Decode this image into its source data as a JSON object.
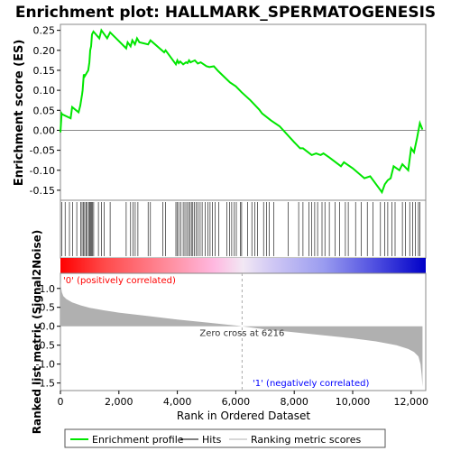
{
  "chart_data": {
    "type": "line",
    "title": "Enrichment plot: HALLMARK_SPERMATOGENESIS",
    "es_panel": {
      "ylabel": "Enrichment score (ES)",
      "ylim": [
        -0.175,
        0.265
      ],
      "yticks": [
        0.25,
        0.2,
        0.15,
        0.1,
        0.05,
        0.0,
        -0.05,
        -0.1,
        -0.15
      ],
      "ytick_labels": [
        "0.25",
        "0.20",
        "0.15",
        "0.10",
        "0.05",
        "0.00",
        "-0.05",
        "-0.10",
        "-0.15"
      ],
      "color": "#00e600",
      "series": [
        {
          "x": [
            0,
            40,
            60,
            350,
            400,
            620,
            680,
            740,
            760,
            800,
            830,
            950,
            990,
            1020,
            1050,
            1080,
            1130,
            1330,
            1400,
            1600,
            1700,
            2250,
            2300,
            2400,
            2460,
            2550,
            2620,
            2700,
            3000,
            3080,
            3550,
            3600,
            3950,
            4000,
            4050,
            4100,
            4200,
            4300,
            4350,
            4400,
            4450,
            4600,
            4700,
            4800,
            5000,
            5100,
            5250,
            5400,
            5800,
            6000,
            6200,
            6500,
            6800,
            6900,
            7200,
            7500,
            8000,
            8200,
            8300,
            8600,
            8750,
            8900,
            9000,
            9200,
            9600,
            9700,
            10000,
            10400,
            10600,
            10900,
            11000,
            11100,
            11200,
            11300,
            11400,
            11600,
            11700,
            11900,
            11950,
            12000,
            12100,
            12200,
            12300,
            12390
          ],
          "y": [
            -0.005,
            0.042,
            0.04,
            0.03,
            0.058,
            0.045,
            0.062,
            0.09,
            0.1,
            0.14,
            0.135,
            0.15,
            0.17,
            0.2,
            0.21,
            0.24,
            0.247,
            0.23,
            0.25,
            0.23,
            0.245,
            0.205,
            0.22,
            0.21,
            0.225,
            0.215,
            0.23,
            0.22,
            0.215,
            0.225,
            0.195,
            0.2,
            0.165,
            0.175,
            0.168,
            0.172,
            0.165,
            0.17,
            0.168,
            0.175,
            0.17,
            0.175,
            0.167,
            0.17,
            0.16,
            0.158,
            0.16,
            0.148,
            0.12,
            0.11,
            0.095,
            0.075,
            0.052,
            0.042,
            0.025,
            0.01,
            -0.03,
            -0.045,
            -0.045,
            -0.062,
            -0.058,
            -0.062,
            -0.058,
            -0.068,
            -0.09,
            -0.08,
            -0.095,
            -0.12,
            -0.115,
            -0.145,
            -0.155,
            -0.135,
            -0.125,
            -0.12,
            -0.09,
            -0.1,
            -0.085,
            -0.1,
            -0.072,
            -0.045,
            -0.055,
            -0.02,
            0.018,
            0.002
          ]
        }
      ]
    },
    "hits_x": [
      40,
      160,
      310,
      410,
      560,
      700,
      740,
      790,
      830,
      880,
      920,
      970,
      1010,
      1040,
      1070,
      1100,
      1140,
      1300,
      1400,
      1500,
      1700,
      2250,
      2400,
      2480,
      2560,
      2650,
      3000,
      3080,
      3500,
      3600,
      3950,
      4000,
      4050,
      4120,
      4200,
      4260,
      4320,
      4380,
      4430,
      4480,
      4530,
      4580,
      4640,
      4700,
      4780,
      4850,
      4950,
      5050,
      5120,
      5200,
      5300,
      5420,
      5700,
      5780,
      5860,
      5950,
      6020,
      6150,
      6200,
      6400,
      6550,
      6650,
      6750,
      6950,
      7050,
      7150,
      7300,
      7800,
      8150,
      8300,
      8500,
      8600,
      8700,
      8800,
      8950,
      9050,
      9200,
      9400,
      9550,
      9750,
      9850,
      10100,
      10300,
      10500,
      10700,
      10950,
      11100,
      11200,
      11350,
      11450,
      11700,
      11800,
      11950,
      12050,
      12150,
      12250,
      12300
    ],
    "metric_panel": {
      "ylabel": "Ranked list metric (Signal2Noise)",
      "xlabel": "Rank in Ordered Dataset",
      "xlim": [
        0,
        12500
      ],
      "xticks": [
        0,
        2000,
        4000,
        6000,
        8000,
        10000,
        12000
      ],
      "xtick_labels": [
        "0",
        "2,000",
        "4,000",
        "6,000",
        "8,000",
        "10,000",
        "12,000"
      ],
      "ylim": [
        -1.7,
        1.4
      ],
      "yticks": [
        1.0,
        0.5,
        0.0,
        -0.5,
        -1.0,
        -1.5
      ],
      "ytick_labels": [
        "1.0",
        "0.5",
        "0.0",
        "-0.5",
        "-1.0",
        "-1.5"
      ],
      "color": "#b0b0b0",
      "x": [
        0,
        20,
        50,
        100,
        200,
        400,
        700,
        1000,
        1500,
        2000,
        3000,
        4000,
        5000,
        6000,
        6216,
        7000,
        8000,
        9000,
        10000,
        10800,
        11500,
        11900,
        12100,
        12250,
        12320,
        12360,
        12390
      ],
      "y": [
        1.2,
        1.05,
        0.9,
        0.8,
        0.72,
        0.63,
        0.55,
        0.49,
        0.42,
        0.36,
        0.27,
        0.18,
        0.1,
        0.02,
        0.0,
        -0.08,
        -0.16,
        -0.24,
        -0.32,
        -0.4,
        -0.5,
        -0.6,
        -0.68,
        -0.8,
        -1.0,
        -1.3,
        -1.6
      ],
      "zero_cross_rank": 6216,
      "zero_cross_label": "Zero cross at 6216",
      "pos_label": "'0' (positively correlated)",
      "neg_label": "'1' (negatively correlated)",
      "pos_color": "#ff0000",
      "neg_color": "#0000ff"
    },
    "legend": {
      "placement": "bottom",
      "items": [
        {
          "label": "Enrichment profile",
          "color": "#00e600"
        },
        {
          "label": "Hits",
          "color": "#000000"
        },
        {
          "label": "Ranking metric scores",
          "color": "#b0b0b0"
        }
      ]
    }
  }
}
